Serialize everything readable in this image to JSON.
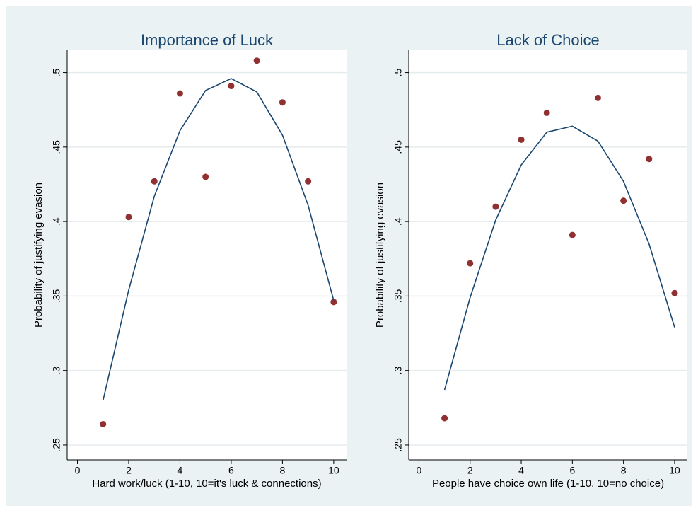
{
  "chart_data": [
    {
      "type": "scatter",
      "title": "Importance of Luck",
      "x_label": "Hard work/luck (1-10, 10=it's luck & connections)",
      "y_label": "Probability of justifying evasion",
      "x": [
        1,
        2,
        3,
        4,
        5,
        6,
        7,
        8,
        9,
        10
      ],
      "series": [
        {
          "type": "scatter",
          "color": "#903030",
          "values": [
            0.264,
            0.403,
            0.427,
            0.486,
            0.43,
            0.491,
            0.508,
            0.48,
            0.427,
            0.346
          ]
        },
        {
          "type": "line",
          "color": "#1a476f",
          "values": [
            0.28,
            0.354,
            0.417,
            0.461,
            0.488,
            0.496,
            0.487,
            0.458,
            0.411,
            0.347
          ]
        }
      ],
      "xlim": [
        -0.4,
        10.5
      ],
      "xticks": [
        0,
        2,
        4,
        6,
        8,
        10
      ],
      "ylim": [
        0.24,
        0.515
      ],
      "yticks": [
        {
          "value": 0.25,
          "label": ".25"
        },
        {
          "value": 0.3,
          "label": ".3"
        },
        {
          "value": 0.35,
          "label": ".35"
        },
        {
          "value": 0.4,
          "label": ".4"
        },
        {
          "value": 0.45,
          "label": ".45"
        },
        {
          "value": 0.5,
          "label": ".5"
        }
      ],
      "grid": true
    },
    {
      "type": "scatter",
      "title": "Lack of Choice",
      "x_label": "People have choice own life (1-10, 10=no choice)",
      "y_label": "Probability of justifying evasion",
      "x": [
        1,
        2,
        3,
        4,
        5,
        6,
        7,
        8,
        9,
        10
      ],
      "series": [
        {
          "type": "scatter",
          "color": "#903030",
          "values": [
            0.268,
            0.372,
            0.41,
            0.455,
            0.473,
            0.391,
            0.483,
            0.414,
            0.442,
            0.352
          ]
        },
        {
          "type": "line",
          "color": "#1a476f",
          "values": [
            0.287,
            0.349,
            0.401,
            0.438,
            0.46,
            0.464,
            0.454,
            0.427,
            0.385,
            0.329
          ]
        }
      ],
      "xlim": [
        -0.4,
        10.5
      ],
      "xticks": [
        0,
        2,
        4,
        6,
        8,
        10
      ],
      "ylim": [
        0.24,
        0.515
      ],
      "yticks": [
        {
          "value": 0.25,
          "label": ".25"
        },
        {
          "value": 0.3,
          "label": ".3"
        },
        {
          "value": 0.35,
          "label": ".35"
        },
        {
          "value": 0.4,
          "label": ".4"
        },
        {
          "value": 0.45,
          "label": ".45"
        },
        {
          "value": 0.5,
          "label": ".5"
        }
      ],
      "grid": true
    }
  ]
}
